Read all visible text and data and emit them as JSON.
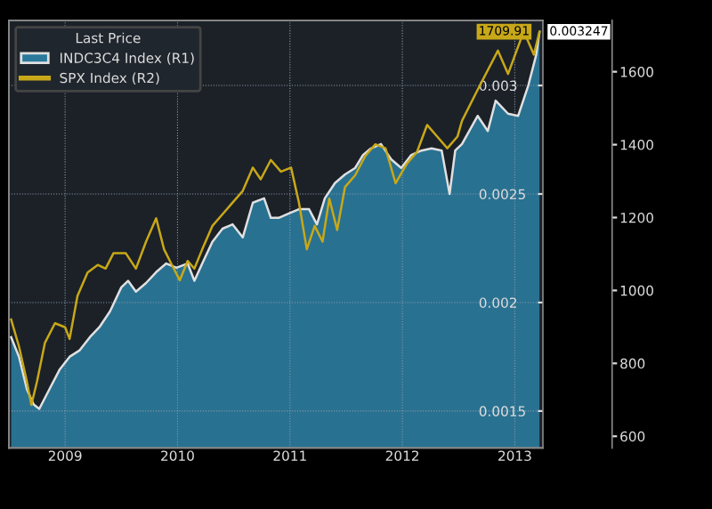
{
  "chart_data": {
    "type": "line",
    "legend_title": "Last Price",
    "legend": "top left",
    "grid": true,
    "xlim": [
      2009.0,
      2013.75
    ],
    "xticks": [
      {
        "value": 2009.5,
        "label": "2009"
      },
      {
        "value": 2010.5,
        "label": "2010"
      },
      {
        "value": 2011.5,
        "label": "2011"
      },
      {
        "value": 2012.5,
        "label": "2012"
      },
      {
        "value": 2013.5,
        "label": "2013"
      }
    ],
    "ylim": [
      0.00133,
      0.0033
    ],
    "yticks": [
      0.0015,
      0.002,
      0.0025,
      0.003
    ],
    "y2lim": [
      568,
      1741
    ],
    "y2ticks": [
      600,
      800,
      1000,
      1200,
      1400,
      1600
    ],
    "series": [
      {
        "name": "INDC3C4 Index (R1)",
        "type": "area",
        "color": "#2b7a9c",
        "x": [
          2009.02,
          2009.09,
          2009.16,
          2009.22,
          2009.27,
          2009.36,
          2009.45,
          2009.54,
          2009.63,
          2009.72,
          2009.81,
          2009.9,
          2010.0,
          2010.06,
          2010.13,
          2010.22,
          2010.31,
          2010.4,
          2010.49,
          2010.59,
          2010.65,
          2010.72,
          2010.81,
          2010.9,
          2010.99,
          2011.08,
          2011.17,
          2011.27,
          2011.33,
          2011.4,
          2011.49,
          2011.58,
          2011.67,
          2011.74,
          2011.81,
          2011.9,
          2011.99,
          2012.08,
          2012.15,
          2012.22,
          2012.31,
          2012.4,
          2012.49,
          2012.58,
          2012.67,
          2012.76,
          2012.85,
          2012.92,
          2012.97,
          2013.03,
          2013.17,
          2013.26,
          2013.33,
          2013.44,
          2013.53,
          2013.62,
          2013.69,
          2013.72
        ],
        "values": [
          0.00184,
          0.00175,
          0.0016,
          0.00153,
          0.00151,
          0.0016,
          0.00169,
          0.00175,
          0.00178,
          0.00184,
          0.00189,
          0.00196,
          0.00207,
          0.0021,
          0.00205,
          0.00209,
          0.00214,
          0.00218,
          0.00216,
          0.00218,
          0.0021,
          0.00218,
          0.00228,
          0.00234,
          0.00236,
          0.0023,
          0.00246,
          0.00248,
          0.00239,
          0.00239,
          0.00241,
          0.00243,
          0.00243,
          0.00236,
          0.00248,
          0.00255,
          0.00259,
          0.00262,
          0.00268,
          0.00271,
          0.00273,
          0.00266,
          0.00262,
          0.00268,
          0.0027,
          0.00271,
          0.0027,
          0.0025,
          0.0027,
          0.00273,
          0.00286,
          0.00279,
          0.00293,
          0.00287,
          0.00286,
          0.003,
          0.00314,
          0.003247
        ],
        "value_labels": [
          null,
          null,
          null,
          null,
          null,
          null,
          null,
          null,
          null,
          null,
          null,
          null,
          null,
          null,
          null,
          null,
          null,
          null,
          null,
          null,
          null,
          null,
          null,
          null,
          null,
          null,
          null,
          null,
          null,
          null,
          null,
          null,
          null,
          null,
          null,
          null,
          null,
          null,
          null,
          null,
          null,
          null,
          null,
          null,
          null,
          null,
          null,
          null,
          null,
          null,
          null,
          null,
          null,
          null,
          null,
          null,
          null,
          "0.003247"
        ]
      },
      {
        "name": "SPX Index (R2)",
        "axis": "y2",
        "color": "#c8a818",
        "x": [
          2009.02,
          2009.09,
          2009.16,
          2009.2,
          2009.25,
          2009.32,
          2009.41,
          2009.5,
          2009.54,
          2009.61,
          2009.7,
          2009.79,
          2009.86,
          2009.93,
          2010.04,
          2010.13,
          2010.22,
          2010.31,
          2010.38,
          2010.45,
          2010.52,
          2010.59,
          2010.65,
          2010.72,
          2010.81,
          2010.9,
          2010.99,
          2011.08,
          2011.17,
          2011.24,
          2011.33,
          2011.42,
          2011.51,
          2011.58,
          2011.65,
          2011.72,
          2011.79,
          2011.85,
          2011.92,
          2011.99,
          2012.08,
          2012.17,
          2012.26,
          2012.35,
          2012.44,
          2012.54,
          2012.63,
          2012.72,
          2012.81,
          2012.9,
          2012.99,
          2013.03,
          2013.17,
          2013.35,
          2013.44,
          2013.58,
          2013.67,
          2013.72
        ],
        "values": [
          920,
          846,
          750,
          686,
          750,
          856,
          910,
          899,
          867,
          985,
          1049,
          1070,
          1060,
          1102,
          1102,
          1060,
          1134,
          1198,
          1113,
          1070,
          1028,
          1081,
          1060,
          1113,
          1177,
          1209,
          1241,
          1273,
          1337,
          1305,
          1358,
          1326,
          1337,
          1241,
          1113,
          1177,
          1134,
          1252,
          1166,
          1284,
          1316,
          1369,
          1401,
          1390,
          1294,
          1348,
          1380,
          1454,
          1422,
          1390,
          1422,
          1465,
          1551,
          1658,
          1594,
          1711,
          1647,
          1709.91
        ],
        "value_labels": [
          null,
          null,
          null,
          null,
          null,
          null,
          null,
          null,
          null,
          null,
          null,
          null,
          null,
          null,
          null,
          null,
          null,
          null,
          null,
          null,
          null,
          null,
          null,
          null,
          null,
          null,
          null,
          null,
          null,
          null,
          null,
          null,
          null,
          null,
          null,
          null,
          null,
          null,
          null,
          null,
          null,
          null,
          null,
          null,
          null,
          null,
          null,
          null,
          null,
          null,
          null,
          null,
          null,
          null,
          null,
          null,
          null,
          "1709.91"
        ]
      }
    ]
  }
}
